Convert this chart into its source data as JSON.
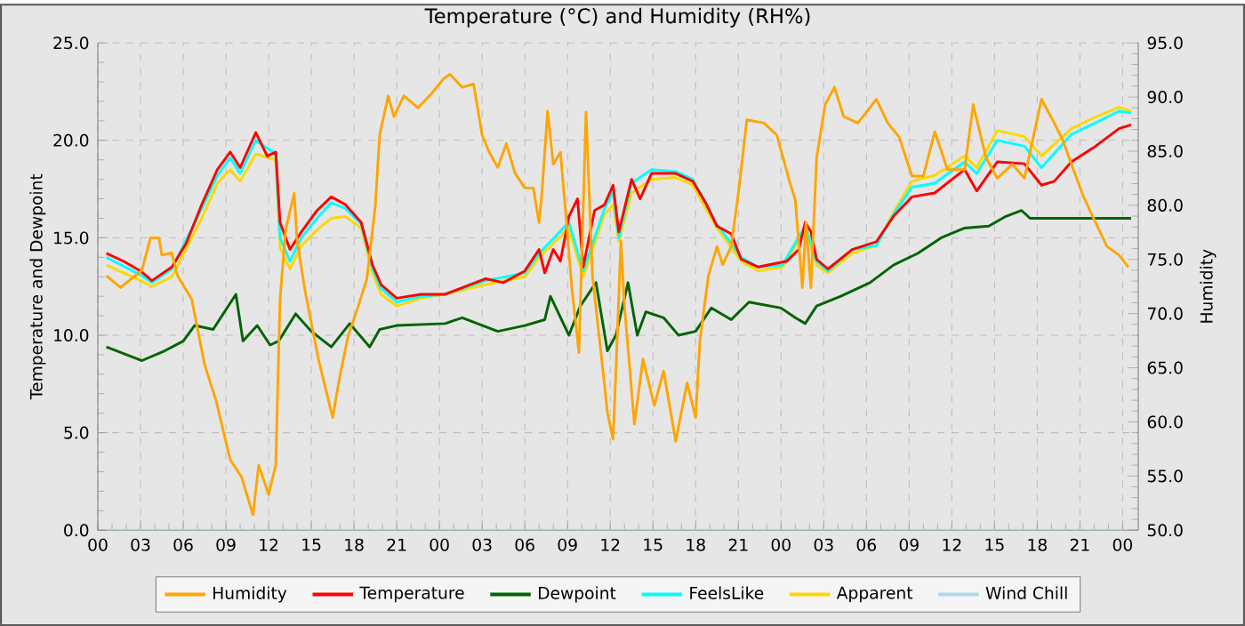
{
  "chart_data": {
    "type": "line",
    "title": "Temperature (°C) and Humidity (RH%)",
    "ylabel": "Temperature and Dewpoint",
    "y2label": "Humidity",
    "xlim": [
      0,
      73.1
    ],
    "ylim": [
      0,
      25
    ],
    "y2lim": [
      50,
      95
    ],
    "xticks": [
      {
        "value": 0,
        "label": "00"
      },
      {
        "value": 3,
        "label": "03"
      },
      {
        "value": 6,
        "label": "06"
      },
      {
        "value": 9,
        "label": "09"
      },
      {
        "value": 12,
        "label": "12"
      },
      {
        "value": 15,
        "label": "15"
      },
      {
        "value": 18,
        "label": "18"
      },
      {
        "value": 21,
        "label": "21"
      },
      {
        "value": 24,
        "label": "00"
      },
      {
        "value": 27,
        "label": "03"
      },
      {
        "value": 30,
        "label": "06"
      },
      {
        "value": 33,
        "label": "09"
      },
      {
        "value": 36,
        "label": "12"
      },
      {
        "value": 39,
        "label": "15"
      },
      {
        "value": 42,
        "label": "18"
      },
      {
        "value": 45,
        "label": "21"
      },
      {
        "value": 48,
        "label": "00"
      },
      {
        "value": 51,
        "label": "03"
      },
      {
        "value": 54,
        "label": "06"
      },
      {
        "value": 57,
        "label": "09"
      },
      {
        "value": 60,
        "label": "12"
      },
      {
        "value": 63,
        "label": "15"
      },
      {
        "value": 66,
        "label": "18"
      },
      {
        "value": 69,
        "label": "21"
      },
      {
        "value": 72,
        "label": "00"
      }
    ],
    "yticks": [
      {
        "value": 0,
        "label": "0.0"
      },
      {
        "value": 5,
        "label": "5.0"
      },
      {
        "value": 10,
        "label": "10.0"
      },
      {
        "value": 15,
        "label": "15.0"
      },
      {
        "value": 20,
        "label": "20.0"
      },
      {
        "value": 25,
        "label": "25.0"
      }
    ],
    "y2ticks": [
      {
        "value": 50,
        "label": "50.0"
      },
      {
        "value": 55,
        "label": "55.0"
      },
      {
        "value": 60,
        "label": "60.0"
      },
      {
        "value": 65,
        "label": "65.0"
      },
      {
        "value": 70,
        "label": "70.0"
      },
      {
        "value": 75,
        "label": "75.0"
      },
      {
        "value": 80,
        "label": "80.0"
      },
      {
        "value": 85,
        "label": "85.0"
      },
      {
        "value": 90,
        "label": "90.0"
      },
      {
        "value": 95,
        "label": "95.0"
      }
    ],
    "grid": true,
    "legend": "bottom",
    "series": [
      {
        "name": "Humidity",
        "color": "#ffa500",
        "axis": "y2",
        "x": [
          0.6,
          1.6,
          3.1,
          3.7,
          4.3,
          4.5,
          5.2,
          5.6,
          6.6,
          7.5,
          8.3,
          9.3,
          10.1,
          10.9,
          11.3,
          12,
          12.5,
          12.8,
          13.2,
          13.8,
          14,
          14.6,
          15.5,
          16.5,
          17,
          17.6,
          18.3,
          18.9,
          19.5,
          19.8,
          20.4,
          20.8,
          21.5,
          22.5,
          23.5,
          24.3,
          24.75,
          25.6,
          26.4,
          27,
          27.5,
          28.1,
          28.7,
          29.3,
          30,
          30.6,
          31,
          31.2,
          31.6,
          32,
          32.5,
          32.9,
          33.3,
          33.8,
          34.3,
          34.75,
          35.4,
          35.8,
          36.2,
          36.4,
          36.75,
          37,
          37.7,
          38.3,
          39.1,
          39.75,
          40.6,
          41.4,
          42,
          42.3,
          42.9,
          43.5,
          43.9,
          44.5,
          45,
          45.6,
          46.8,
          47.7,
          48.1,
          48.6,
          49,
          49.5,
          49.75,
          50.1,
          50.5,
          51.1,
          51.75,
          52.4,
          53.4,
          54.7,
          55.5,
          56.3,
          57.2,
          58,
          58.8,
          59.7,
          60.9,
          61.5,
          62.4,
          63.2,
          64.25,
          65.1,
          66.3,
          67.2,
          67.8,
          68.4,
          69.25,
          70.1,
          70.9,
          71.75,
          72.4
        ],
        "values": [
          73.5,
          72.4,
          74,
          77,
          77,
          75.4,
          75.6,
          73.5,
          71.3,
          65.3,
          62,
          56.5,
          54.9,
          51.4,
          56,
          53.3,
          56,
          71.3,
          77.8,
          81.1,
          76.7,
          71.8,
          65.8,
          60.4,
          64.2,
          68,
          70.7,
          73.2,
          80,
          86.5,
          90.1,
          88.2,
          90.1,
          89,
          90.4,
          91.7,
          92.1,
          90.9,
          91.2,
          86.5,
          84.9,
          83.5,
          85.7,
          83,
          81.6,
          81.6,
          78.4,
          81.1,
          88.7,
          83.8,
          84.9,
          78.9,
          72.4,
          66.4,
          88.6,
          73.5,
          65.8,
          60.9,
          58.4,
          64.7,
          76.7,
          70.7,
          59.8,
          65.8,
          61.5,
          64.7,
          58.2,
          63.6,
          60.4,
          67.5,
          73.5,
          76.2,
          74.5,
          76.2,
          81.1,
          87.9,
          87.6,
          86.5,
          84.6,
          82.2,
          80.5,
          72.4,
          78.4,
          72.4,
          84.4,
          89.3,
          90.9,
          88.2,
          87.6,
          89.8,
          87.6,
          86.3,
          82.7,
          82.7,
          86.8,
          83.3,
          83.3,
          89.3,
          84.4,
          82.5,
          83.8,
          82.5,
          89.8,
          87.6,
          86,
          83.8,
          80.8,
          78.4,
          76.2,
          75.4,
          74.3
        ]
      },
      {
        "name": "Temperature",
        "color": "#ff0000",
        "x": [
          0.6,
          1.8,
          3,
          3.8,
          5.2,
          6.2,
          7.3,
          8.4,
          9.3,
          10,
          11.1,
          11.9,
          12.5,
          12.8,
          13.5,
          14.3,
          15.4,
          16.4,
          17.4,
          18.5,
          19.3,
          19.9,
          21,
          22.7,
          24.4,
          27.25,
          28.5,
          30,
          31,
          31.4,
          32,
          32.5,
          33.1,
          33.7,
          34.1,
          34.9,
          35.6,
          36.2,
          36.6,
          37.5,
          38.1,
          38.9,
          40.6,
          41.8,
          42.7,
          43.5,
          44.5,
          45.2,
          46.4,
          48.4,
          49.25,
          49.7,
          50.1,
          50.5,
          51.3,
          53,
          54.7,
          55.9,
          57.2,
          58.8,
          60.9,
          61.75,
          63.2,
          65.1,
          66.3,
          67.2,
          68.4,
          70.1,
          71.75,
          72.6
        ],
        "values": [
          14.2,
          13.8,
          13.3,
          12.8,
          13.5,
          14.7,
          16.7,
          18.5,
          19.4,
          18.6,
          20.4,
          19.2,
          19.4,
          15.8,
          14.4,
          15.3,
          16.4,
          17.1,
          16.7,
          15.8,
          13.6,
          12.6,
          11.9,
          12.1,
          12.1,
          12.9,
          12.7,
          13.3,
          14.4,
          13.2,
          14.4,
          13.8,
          16.1,
          17,
          13.5,
          16.4,
          16.7,
          17.7,
          15.3,
          18,
          17,
          18.3,
          18.3,
          17.9,
          16.8,
          15.6,
          15.2,
          13.9,
          13.5,
          13.8,
          14.4,
          15.8,
          15.3,
          13.9,
          13.4,
          14.4,
          14.8,
          16.1,
          17.1,
          17.3,
          18.5,
          17.4,
          18.9,
          18.8,
          17.7,
          17.9,
          18.9,
          19.7,
          20.6,
          20.8
        ]
      },
      {
        "name": "Dewpoint",
        "color": "#006400",
        "x": [
          0.6,
          3.1,
          4.7,
          6,
          6.8,
          8.1,
          9.7,
          10.2,
          11.2,
          12.1,
          12.7,
          13.9,
          15,
          16.4,
          17.7,
          19.1,
          19.8,
          21,
          24.4,
          25.6,
          28.1,
          30,
          31.4,
          31.8,
          33.1,
          33.9,
          35,
          35.8,
          36.4,
          37.25,
          37.9,
          38.5,
          39.75,
          40.8,
          42,
          43.1,
          44.5,
          45.75,
          48,
          49,
          49.7,
          50.5,
          52.2,
          54.25,
          55.9,
          57.6,
          59.25,
          60.9,
          62.6,
          63.8,
          64.9,
          65.5,
          67.6,
          72.6
        ],
        "values": [
          9.4,
          8.7,
          9.2,
          9.7,
          10.5,
          10.3,
          12.1,
          9.7,
          10.5,
          9.5,
          9.7,
          11.1,
          10.2,
          9.4,
          10.6,
          9.4,
          10.3,
          10.5,
          10.6,
          10.9,
          10.2,
          10.5,
          10.8,
          12,
          10,
          11.5,
          12.7,
          9.2,
          10,
          12.7,
          10,
          11.2,
          10.9,
          10,
          10.2,
          11.4,
          10.8,
          11.7,
          11.4,
          10.9,
          10.6,
          11.5,
          12,
          12.7,
          13.6,
          14.2,
          15,
          15.5,
          15.6,
          16.1,
          16.4,
          16,
          16,
          16
        ]
      },
      {
        "name": "FeelsLike",
        "color": "#00ffff",
        "x": [
          0.6,
          3,
          3.8,
          5.2,
          7.3,
          8.4,
          9.3,
          10,
          11.1,
          12.5,
          12.8,
          13.5,
          14.3,
          15.4,
          16.4,
          17.4,
          18.5,
          19.3,
          19.9,
          21,
          22.7,
          24.4,
          27.25,
          30,
          31,
          33.1,
          34.1,
          35.6,
          36.2,
          36.6,
          37.5,
          38.9,
          40.6,
          41.8,
          43.5,
          45.2,
          46.4,
          48.1,
          49.7,
          50.5,
          51.3,
          53,
          54.7,
          55.9,
          57.2,
          58.8,
          60.9,
          61.75,
          63.2,
          65.1,
          66.3,
          68.4,
          70.1,
          71.75,
          72.6
        ],
        "values": [
          14,
          13.1,
          12.7,
          13.4,
          16.5,
          18.2,
          19.1,
          18.3,
          20,
          19.3,
          15,
          13.8,
          15,
          16,
          16.8,
          16.5,
          15.7,
          13.4,
          12.4,
          11.7,
          12,
          12.1,
          12.8,
          13.2,
          14.2,
          15.8,
          13.3,
          16.5,
          17.4,
          15,
          17.8,
          18.5,
          18.4,
          18,
          15.7,
          14,
          13.5,
          13.6,
          15.6,
          13.8,
          13.3,
          14.4,
          14.6,
          16.2,
          17.6,
          17.8,
          18.9,
          18.3,
          20,
          19.7,
          18.6,
          20.3,
          20.9,
          21.5,
          21.4
        ]
      },
      {
        "name": "Apparent",
        "color": "#ffd700",
        "x": [
          0.6,
          3,
          3.8,
          5.2,
          7.3,
          8.4,
          9.3,
          10,
          11.1,
          12.5,
          12.8,
          13.5,
          14.3,
          15.4,
          16.4,
          17.4,
          18.5,
          19.3,
          19.9,
          21,
          22.7,
          24.4,
          27.25,
          30,
          31,
          33.1,
          34.1,
          35.6,
          36.2,
          36.6,
          37.5,
          38.9,
          40.6,
          41.8,
          43.5,
          45.2,
          46.4,
          48.1,
          49.7,
          50.5,
          51.3,
          53,
          54.7,
          55.9,
          57.2,
          58.8,
          60.9,
          61.75,
          63.2,
          65.1,
          66.3,
          68.4,
          70.1,
          71.75,
          72.6
        ],
        "values": [
          13.6,
          12.8,
          12.5,
          13,
          16,
          17.8,
          18.5,
          17.9,
          19.3,
          19,
          14.5,
          13.4,
          14.6,
          15.4,
          16,
          16.1,
          15.5,
          13.2,
          12.1,
          11.5,
          11.9,
          12.1,
          12.6,
          13,
          14,
          15.5,
          13,
          16.2,
          16.7,
          14.8,
          17.3,
          18,
          18.1,
          17.7,
          15.5,
          13.8,
          13.3,
          13.5,
          15.4,
          13.6,
          13.2,
          14.2,
          14.6,
          16.3,
          17.9,
          18.2,
          19.2,
          18.6,
          20.5,
          20.2,
          19.2,
          20.6,
          21.2,
          21.7,
          21.5
        ]
      },
      {
        "name": "Wind Chill",
        "color": "#add8e6",
        "x": [
          0.6,
          72.8
        ],
        "values": [
          0,
          0
        ]
      }
    ]
  }
}
